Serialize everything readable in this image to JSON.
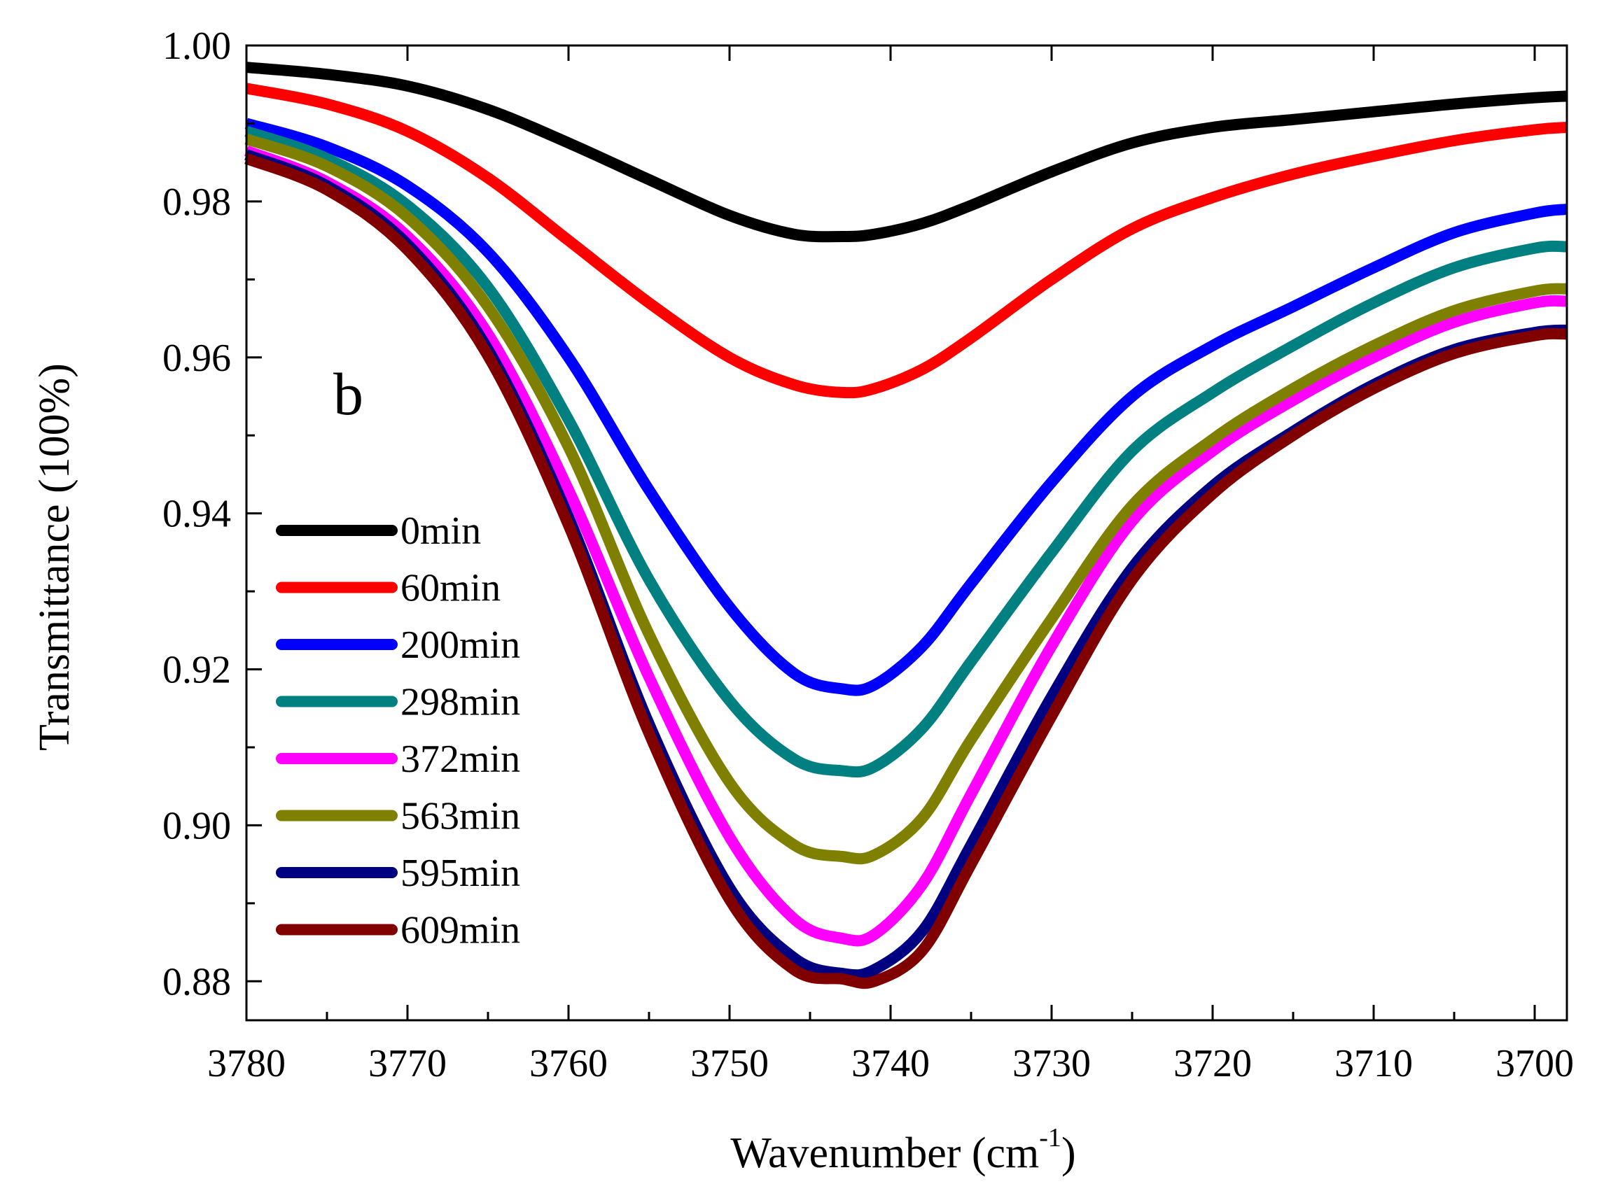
{
  "chart_data": {
    "type": "line",
    "panel_label": "b",
    "xlabel": "Wavenumber (cm",
    "xlabel_superscript": "-1",
    "xlabel_suffix": ")",
    "ylabel": "Transmittance (100%)",
    "xlim": [
      3780,
      3698
    ],
    "ylim": [
      0.875,
      1.0
    ],
    "x_reversed": true,
    "x_ticks": [
      3780,
      3770,
      3760,
      3750,
      3740,
      3730,
      3720,
      3710,
      3700
    ],
    "x_tick_labels": [
      "3780",
      "3770",
      "3760",
      "3750",
      "3740",
      "3730",
      "3720",
      "3710",
      "3700"
    ],
    "y_ticks": [
      0.88,
      0.9,
      0.92,
      0.94,
      0.96,
      0.98,
      1.0
    ],
    "y_tick_labels": [
      "0.88",
      "0.90",
      "0.92",
      "0.94",
      "0.96",
      "0.98",
      "1.00"
    ],
    "grid": false,
    "legend_position": "left-middle",
    "x": [
      3780,
      3775,
      3770,
      3765,
      3760,
      3755,
      3750,
      3746,
      3743,
      3741,
      3738,
      3735,
      3730,
      3725,
      3720,
      3715,
      3710,
      3705,
      3700,
      3698
    ],
    "series": [
      {
        "name": "0min",
        "color": "#000000",
        "values": [
          0.9972,
          0.9963,
          0.9948,
          0.9918,
          0.9875,
          0.9828,
          0.9782,
          0.9758,
          0.9755,
          0.9758,
          0.9772,
          0.9795,
          0.9838,
          0.9875,
          0.9895,
          0.9905,
          0.9915,
          0.9925,
          0.9933,
          0.9935
        ]
      },
      {
        "name": "60min",
        "color": "#ff0000",
        "values": [
          0.9945,
          0.9925,
          0.989,
          0.983,
          0.975,
          0.967,
          0.96,
          0.9565,
          0.9555,
          0.956,
          0.9585,
          0.9625,
          0.97,
          0.9765,
          0.9805,
          0.9835,
          0.9858,
          0.9878,
          0.9892,
          0.9895
        ]
      },
      {
        "name": "200min",
        "color": "#0000ff",
        "values": [
          0.99,
          0.987,
          0.982,
          0.9735,
          0.96,
          0.943,
          0.928,
          0.9195,
          0.9175,
          0.918,
          0.923,
          0.931,
          0.944,
          0.955,
          0.9615,
          0.9665,
          0.9715,
          0.976,
          0.9785,
          0.979
        ]
      },
      {
        "name": "298min",
        "color": "#008080",
        "values": [
          0.989,
          0.9855,
          0.9795,
          0.969,
          0.952,
          0.9315,
          0.916,
          0.9085,
          0.907,
          0.9075,
          0.9125,
          0.921,
          0.935,
          0.948,
          0.9555,
          0.9615,
          0.967,
          0.9715,
          0.974,
          0.9742
        ]
      },
      {
        "name": "372min",
        "color": "#ff00ff",
        "values": [
          0.9865,
          0.9825,
          0.9755,
          0.963,
          0.943,
          0.919,
          0.8985,
          0.888,
          0.8855,
          0.886,
          0.8925,
          0.904,
          0.923,
          0.939,
          0.948,
          0.9545,
          0.96,
          0.9645,
          0.967,
          0.9672
        ]
      },
      {
        "name": "563min",
        "color": "#808000",
        "values": [
          0.988,
          0.9845,
          0.978,
          0.9665,
          0.9485,
          0.9245,
          0.9055,
          0.8975,
          0.896,
          0.8962,
          0.901,
          0.911,
          0.9265,
          0.941,
          0.9495,
          0.956,
          0.9615,
          0.966,
          0.9685,
          0.9688
        ]
      },
      {
        "name": "595min",
        "color": "#000080",
        "values": [
          0.986,
          0.982,
          0.9745,
          0.961,
          0.9395,
          0.913,
          0.892,
          0.883,
          0.881,
          0.8815,
          0.8865,
          0.8975,
          0.9165,
          0.933,
          0.9435,
          0.9505,
          0.9565,
          0.961,
          0.9632,
          0.9635
        ]
      },
      {
        "name": "609min",
        "color": "#800000",
        "values": [
          0.9855,
          0.9815,
          0.9738,
          0.9602,
          0.9385,
          0.9118,
          0.8905,
          0.8815,
          0.8803,
          0.88,
          0.884,
          0.895,
          0.914,
          0.9315,
          0.9425,
          0.95,
          0.956,
          0.9605,
          0.9628,
          0.963
        ]
      }
    ]
  }
}
